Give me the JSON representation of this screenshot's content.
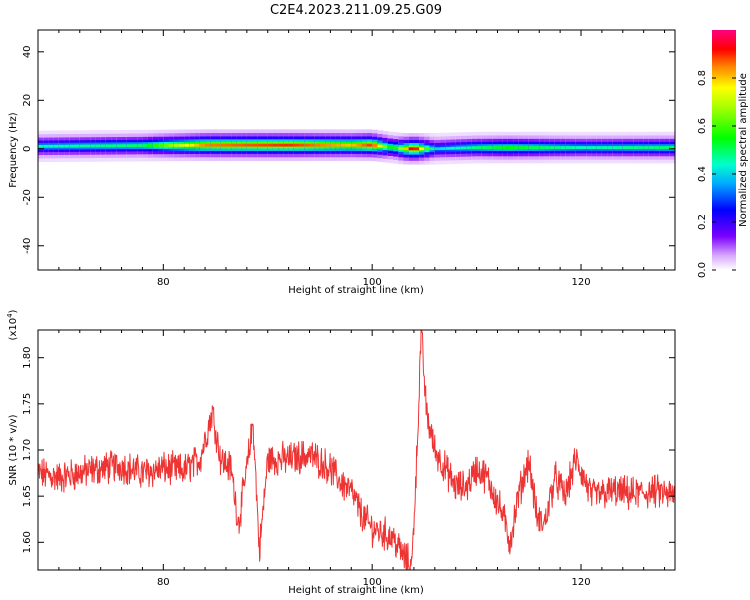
{
  "title": "C2E4.2023.211.09.25.G09",
  "colors": {
    "snr_line": "#ee3333",
    "axis": "#000000",
    "background": "#ffffff"
  },
  "chart_data": [
    {
      "type": "heatmap",
      "xlabel": "Height of straight line (km)",
      "ylabel": "Frequency (Hz)",
      "xlim": [
        68,
        129
      ],
      "ylim": [
        -50,
        49
      ],
      "xticks": [
        80,
        100,
        120
      ],
      "yticks": [
        40,
        20,
        0,
        -20,
        -40
      ],
      "colorbar": {
        "label": "Normalized spectral amplitude",
        "range": [
          0,
          1
        ],
        "ticks": [
          0.0,
          0.2,
          0.4,
          0.6,
          0.8
        ],
        "colormap": "rainbow (white-violet-blue-cyan-green-yellow-red-magenta)"
      },
      "ridge": {
        "description": "single narrow spectral band near 0 Hz",
        "center_freq_hz": [
          {
            "x": 68,
            "f": 1
          },
          {
            "x": 84,
            "f": 1.5
          },
          {
            "x": 96,
            "f": 1.5
          },
          {
            "x": 100,
            "f": 1.5
          },
          {
            "x": 103,
            "f": 0
          },
          {
            "x": 106,
            "f": 0
          },
          {
            "x": 110,
            "f": 0.5
          },
          {
            "x": 129,
            "f": 0.5
          }
        ],
        "peak_amplitude": [
          {
            "x": 68,
            "a": 0.45
          },
          {
            "x": 78,
            "a": 0.5
          },
          {
            "x": 84,
            "a": 0.85
          },
          {
            "x": 92,
            "a": 0.9
          },
          {
            "x": 98,
            "a": 0.8
          },
          {
            "x": 100,
            "a": 0.9
          },
          {
            "x": 102,
            "a": 0.5
          },
          {
            "x": 104,
            "a": 0.98
          },
          {
            "x": 106,
            "a": 0.4
          },
          {
            "x": 113,
            "a": 0.55
          },
          {
            "x": 120,
            "a": 0.45
          },
          {
            "x": 129,
            "a": 0.5
          }
        ]
      }
    },
    {
      "type": "line",
      "xlabel": "Height of straight line (km)",
      "ylabel": "SNR (10 * v/v)",
      "y_multiplier": "(x10^4)",
      "xlim": [
        68,
        129
      ],
      "ylim": [
        1.57,
        1.83
      ],
      "xticks": [
        80,
        100,
        120
      ],
      "yticks": [
        1.6,
        1.65,
        1.7,
        1.75,
        1.8
      ],
      "series": [
        {
          "color": "#ee3333",
          "x": [
            68,
            70,
            72,
            74,
            76,
            78,
            80,
            82,
            83.5,
            84.7,
            85.5,
            86.5,
            87.2,
            88,
            88.6,
            89.2,
            90,
            92,
            94,
            96,
            97,
            98,
            99,
            100,
            101,
            102,
            103,
            103.8,
            104.3,
            104.7,
            105.2,
            106,
            107,
            108,
            109,
            110,
            111,
            112.5,
            113.2,
            114,
            115,
            115.8,
            116.5,
            117.5,
            118.5,
            119.5,
            121,
            123,
            125,
            127,
            129
          ],
          "y": [
            1.675,
            1.67,
            1.675,
            1.68,
            1.683,
            1.675,
            1.68,
            1.678,
            1.69,
            1.742,
            1.69,
            1.68,
            1.62,
            1.68,
            1.73,
            1.59,
            1.69,
            1.69,
            1.695,
            1.68,
            1.665,
            1.655,
            1.63,
            1.615,
            1.61,
            1.605,
            1.585,
            1.575,
            1.7,
            1.83,
            1.74,
            1.7,
            1.68,
            1.66,
            1.66,
            1.68,
            1.67,
            1.63,
            1.6,
            1.65,
            1.69,
            1.625,
            1.62,
            1.67,
            1.65,
            1.69,
            1.65,
            1.655,
            1.652,
            1.655,
            1.65
          ]
        }
      ]
    }
  ]
}
